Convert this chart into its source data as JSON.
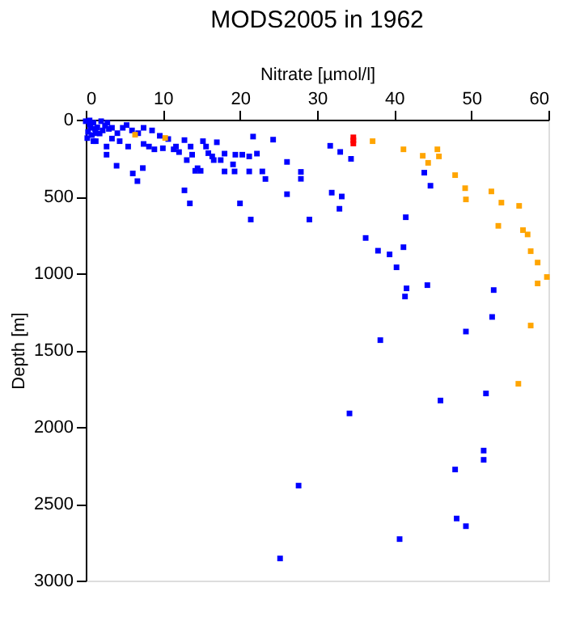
{
  "chart_data": {
    "type": "scatter",
    "title": "MODS2005 in 1962",
    "xlabel": "Nitrate [µmol/l]",
    "ylabel": "Depth [m]",
    "xlim": [
      0,
      60
    ],
    "xticks": [
      0,
      10,
      20,
      30,
      40,
      50,
      60
    ],
    "ylim": [
      3000,
      0
    ],
    "yticks": [
      0,
      500,
      1000,
      1500,
      2000,
      2500,
      3000
    ],
    "grid": false,
    "marker": "square",
    "legend": false,
    "series": [
      {
        "color": "#0000ff",
        "x": [
          0,
          0.5,
          1,
          1.5,
          2,
          0.3,
          0.8,
          1.2,
          2.5,
          2.8,
          0.2,
          1.8,
          3,
          0.5,
          2.2,
          1,
          6.1,
          6.7,
          4.0,
          7.4,
          12.8,
          13.5,
          20.0,
          21.4,
          21.7,
          24.3,
          26.1,
          26.1,
          29.0,
          27.9,
          27.9,
          31.7,
          33.0,
          34.4,
          31.9,
          33.2,
          32.9,
          36.3,
          41.2,
          41.5,
          43.9,
          44.7,
          22.9,
          23.3,
          21.2,
          19.1,
          19.3,
          18.0,
          17.5,
          16.4,
          16.6,
          14.5,
          14.9,
          14.2,
          13.1,
          12.1,
          11.7,
          10.7,
          12.8,
          13.6,
          13.8,
          15.2,
          15.6,
          17.0,
          15.9,
          19.4,
          20.3,
          22.2,
          21.2,
          18.0,
          9.6,
          8.6,
          7.5,
          6.8,
          6.0,
          5.3,
          4.8,
          4.1,
          3.4,
          2.7,
          2.7,
          4.4,
          5.5,
          7.5,
          8.2,
          8.9,
          10.0,
          11.4,
          3.4,
          1.3,
          1.3,
          0.6,
          37.9,
          39.4,
          40.3,
          41.6,
          41.4,
          44.3,
          52.9,
          52.7,
          49.3,
          38.2,
          51.9,
          46.0,
          34.2,
          51.6,
          51.6,
          47.9,
          27.6,
          48.1,
          49.3,
          40.7,
          25.2
        ],
        "values": [
          10,
          30,
          20,
          50,
          10,
          80,
          100,
          60,
          40,
          20,
          120,
          90,
          60,
          5,
          70,
          140,
          350,
          400,
          300,
          315,
          460,
          545,
          545,
          650,
          110,
          130,
          275,
          485,
          650,
          340,
          385,
          170,
          210,
          255,
          475,
          500,
          580,
          770,
          830,
          635,
          345,
          430,
          337,
          386,
          337,
          291,
          337,
          337,
          263,
          239,
          263,
          316,
          333,
          333,
          263,
          211,
          175,
          126,
          133,
          175,
          228,
          140,
          175,
          147,
          218,
          228,
          228,
          221,
          239,
          221,
          105,
          70,
          53,
          88,
          70,
          35,
          53,
          88,
          123,
          175,
          228,
          140,
          175,
          158,
          175,
          193,
          186,
          193,
          53,
          88,
          140,
          53,
          853,
          877,
          961,
          1098,
          1151,
          1077,
          1109,
          1284,
          1379,
          1435,
          1782,
          1828,
          1912,
          2154,
          2214,
          2277,
          2382,
          2596,
          2646,
          2730,
          2856
        ]
      },
      {
        "color": "#ffa500",
        "x": [
          6.4,
          10.3,
          37.2,
          41.2,
          45.6,
          45.8,
          43.7,
          44.4,
          47.9,
          49.2,
          52.6,
          49.3,
          53.9,
          56.2,
          53.5,
          56.7,
          57.3,
          57.7,
          58.6,
          59.8,
          58.6,
          57.7,
          56.1
        ],
        "values": [
          98,
          119,
          140,
          193,
          193,
          239,
          235,
          281,
          361,
          446,
          467,
          519,
          540,
          561,
          691,
          719,
          747,
          856,
          930,
          1024,
          1066,
          1340,
          1719
        ]
      },
      {
        "color": "#ff0000",
        "x": [
          34.7,
          34.7,
          34.7
        ],
        "values": [
          115,
          135,
          155
        ]
      }
    ]
  }
}
